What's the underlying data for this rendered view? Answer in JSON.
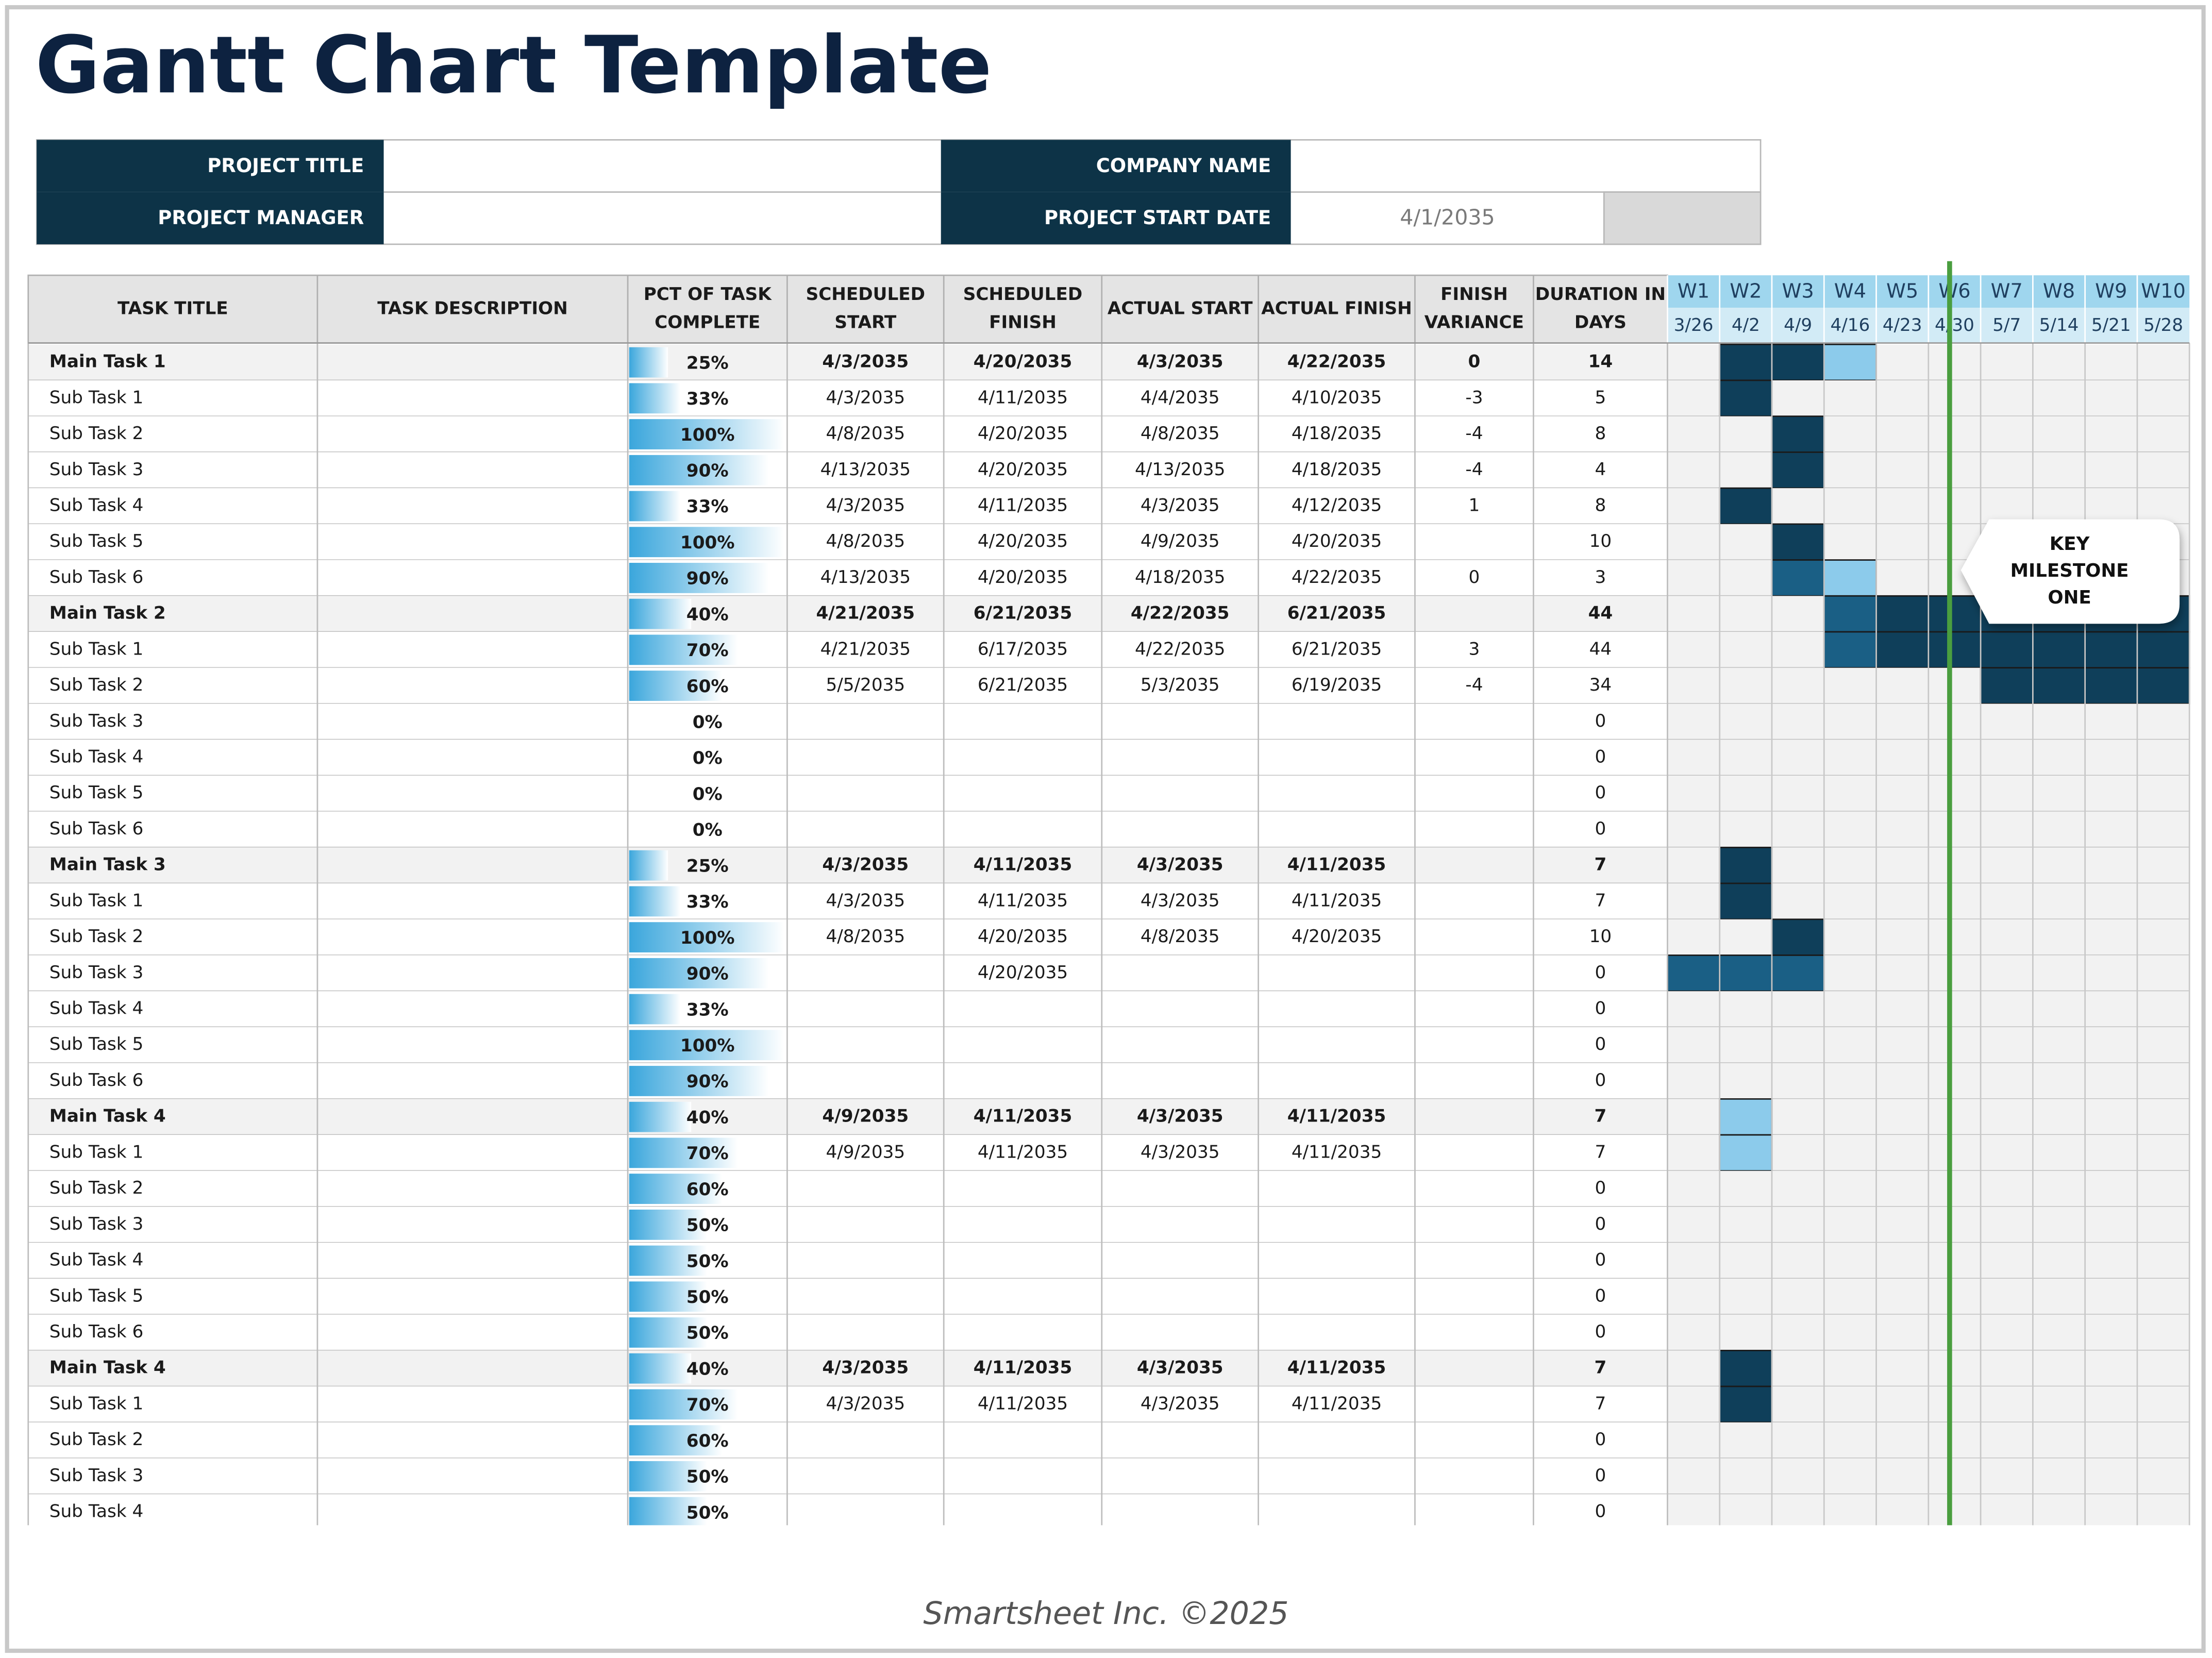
{
  "header": {
    "title": "Gantt Chart Template"
  },
  "project": {
    "labels": [
      "PROJECT TITLE",
      "COMPANY NAME",
      "PROJECT MANAGER",
      "PROJECT START DATE"
    ],
    "start_date": "4/1/2035"
  },
  "table": {
    "columns": [
      [
        "TASK TITLE"
      ],
      [
        "TASK DESCRIPTION"
      ],
      [
        "PCT OF TASK",
        "COMPLETE"
      ],
      [
        "SCHEDULED",
        "START"
      ],
      [
        "SCHEDULED",
        "FINISH"
      ],
      [
        "ACTUAL START"
      ],
      [
        "ACTUAL FINISH"
      ],
      [
        "FINISH",
        "VARIANCE"
      ],
      [
        "DURATION IN",
        "DAYS"
      ]
    ],
    "bar_color": "#3aa6dc",
    "weeks": [
      "W1",
      "W2",
      "W3",
      "W4",
      "W5",
      "W6",
      "W7",
      "W8",
      "W9",
      "W10"
    ],
    "week_dates": [
      "3/26",
      "4/2",
      "4/9",
      "4/16",
      "4/23",
      "4/30",
      "5/7",
      "5/14",
      "5/21",
      "5/28"
    ],
    "rows": [
      {
        "title": "Main Task 1",
        "main": true,
        "pct": 25,
        "pct_label": "25%",
        "sched_start": "4/3/2035",
        "sched_finish": "4/20/2035",
        "act_start": "4/3/2035",
        "act_finish": "4/22/2035",
        "variance": 0,
        "duration": 14,
        "gantt": [
          null,
          "#0f3f5a",
          "#0f3f5a",
          "#8ccbeb",
          null,
          null,
          null,
          null,
          null,
          null
        ]
      },
      {
        "title": "Sub Task 1",
        "pct": 33,
        "pct_label": "33%",
        "sched_start": "4/3/2035",
        "sched_finish": "4/11/2035",
        "act_start": "4/4/2035",
        "act_finish": "4/10/2035",
        "variance": -3,
        "duration": 5,
        "gantt": [
          null,
          "#0f3f5a",
          null,
          null,
          null,
          null,
          null,
          null,
          null,
          null
        ]
      },
      {
        "title": "Sub Task 2",
        "pct": 100,
        "pct_label": "100%",
        "sched_start": "4/8/2035",
        "sched_finish": "4/20/2035",
        "act_start": "4/8/2035",
        "act_finish": "4/18/2035",
        "variance": -4,
        "duration": 8,
        "gantt": [
          null,
          null,
          "#0f3f5a",
          null,
          null,
          null,
          null,
          null,
          null,
          null
        ]
      },
      {
        "title": "Sub Task 3",
        "pct": 90,
        "pct_label": "90%",
        "sched_start": "4/13/2035",
        "sched_finish": "4/20/2035",
        "act_start": "4/13/2035",
        "act_finish": "4/18/2035",
        "variance": -4,
        "duration": 4,
        "gantt": [
          null,
          null,
          "#0f3f5a",
          null,
          null,
          null,
          null,
          null,
          null,
          null
        ]
      },
      {
        "title": "Sub Task 4",
        "pct": 33,
        "pct_label": "33%",
        "sched_start": "4/3/2035",
        "sched_finish": "4/11/2035",
        "act_start": "4/3/2035",
        "act_finish": "4/12/2035",
        "variance": 1,
        "duration": 8,
        "gantt": [
          null,
          "#0f3f5a",
          null,
          null,
          null,
          null,
          null,
          null,
          null,
          null
        ]
      },
      {
        "title": "Sub Task 5",
        "pct": 100,
        "pct_label": "100%",
        "sched_start": "4/8/2035",
        "sched_finish": "4/20/2035",
        "act_start": "4/9/2035",
        "act_finish": "4/20/2035",
        "duration": 10,
        "gantt": [
          null,
          null,
          "#0f3f5a",
          null,
          null,
          null,
          null,
          null,
          null,
          null
        ]
      },
      {
        "title": "Sub Task 6",
        "pct": 90,
        "pct_label": "90%",
        "sched_start": "4/13/2035",
        "sched_finish": "4/20/2035",
        "act_start": "4/18/2035",
        "act_finish": "4/22/2035",
        "variance": 0,
        "duration": 3,
        "gantt": [
          null,
          null,
          "#1a5f85",
          "#8ccbeb",
          null,
          null,
          null,
          null,
          null,
          null
        ]
      },
      {
        "title": "Main Task 2",
        "main": true,
        "pct": 40,
        "pct_label": "40%",
        "sched_start": "4/21/2035",
        "sched_finish": "6/21/2035",
        "act_start": "4/22/2035",
        "act_finish": "6/21/2035",
        "duration": 44,
        "gantt": [
          null,
          null,
          null,
          "#1a5f85",
          "#0f3f5a",
          "#0f3f5a",
          "#0f3f5a",
          "#0f3f5a",
          "#0f3f5a",
          "#0f3f5a"
        ]
      },
      {
        "title": "Sub Task 1",
        "pct": 70,
        "pct_label": "70%",
        "sched_start": "4/21/2035",
        "sched_finish": "6/17/2035",
        "act_start": "4/22/2035",
        "act_finish": "6/21/2035",
        "variance": 3,
        "duration": 44,
        "gantt": [
          null,
          null,
          null,
          "#1a5f85",
          "#0f3f5a",
          "#0f3f5a",
          "#0f3f5a",
          "#0f3f5a",
          "#0f3f5a",
          "#0f3f5a"
        ]
      },
      {
        "title": "Sub Task 2",
        "pct": 60,
        "pct_label": "60%",
        "sched_start": "5/5/2035",
        "sched_finish": "6/21/2035",
        "act_start": "5/3/2035",
        "act_finish": "6/19/2035",
        "variance": -4,
        "duration": 34,
        "gantt": [
          null,
          null,
          null,
          null,
          null,
          null,
          "#0f3f5a",
          "#0f3f5a",
          "#0f3f5a",
          "#0f3f5a"
        ]
      },
      {
        "title": "Sub Task 3",
        "pct": 0,
        "pct_label": "0%",
        "duration": 0
      },
      {
        "title": "Sub Task 4",
        "pct": 0,
        "pct_label": "0%",
        "duration": 0
      },
      {
        "title": "Sub Task 5",
        "pct": 0,
        "pct_label": "0%",
        "duration": 0
      },
      {
        "title": "Sub Task 6",
        "pct": 0,
        "pct_label": "0%",
        "duration": 0
      },
      {
        "title": "Main Task 3",
        "main": true,
        "pct": 25,
        "pct_label": "25%",
        "sched_start": "4/3/2035",
        "sched_finish": "4/11/2035",
        "act_start": "4/3/2035",
        "act_finish": "4/11/2035",
        "duration": 7,
        "gantt": [
          null,
          "#0f3f5a",
          null,
          null,
          null,
          null,
          null,
          null,
          null,
          null
        ]
      },
      {
        "title": "Sub Task 1",
        "pct": 33,
        "pct_label": "33%",
        "sched_start": "4/3/2035",
        "sched_finish": "4/11/2035",
        "act_start": "4/3/2035",
        "act_finish": "4/11/2035",
        "duration": 7,
        "gantt": [
          null,
          "#0f3f5a",
          null,
          null,
          null,
          null,
          null,
          null,
          null,
          null
        ]
      },
      {
        "title": "Sub Task 2",
        "pct": 100,
        "pct_label": "100%",
        "sched_start": "4/8/2035",
        "sched_finish": "4/20/2035",
        "act_start": "4/8/2035",
        "act_finish": "4/20/2035",
        "duration": 10,
        "gantt": [
          null,
          null,
          "#0f3f5a",
          null,
          null,
          null,
          null,
          null,
          null,
          null
        ]
      },
      {
        "title": "Sub Task 3",
        "pct": 90,
        "pct_label": "90%",
        "sched_finish": "4/20/2035",
        "duration": 0,
        "gantt": [
          "#1a5f85",
          "#1a5f85",
          "#1a5f85",
          null,
          null,
          null,
          null,
          null,
          null,
          null
        ]
      },
      {
        "title": "Sub Task 4",
        "pct": 33,
        "pct_label": "33%",
        "duration": 0
      },
      {
        "title": "Sub Task 5",
        "pct": 100,
        "pct_label": "100%",
        "duration": 0
      },
      {
        "title": "Sub Task 6",
        "pct": 90,
        "pct_label": "90%",
        "duration": 0
      },
      {
        "title": "Main Task 4",
        "main": true,
        "pct": 40,
        "pct_label": "40%",
        "sched_start": "4/9/2035",
        "sched_finish": "4/11/2035",
        "act_start": "4/3/2035",
        "act_finish": "4/11/2035",
        "duration": 7,
        "gantt": [
          null,
          "#8ccbeb",
          null,
          null,
          null,
          null,
          null,
          null,
          null,
          null
        ]
      },
      {
        "title": "Sub Task 1",
        "pct": 70,
        "pct_label": "70%",
        "sched_start": "4/9/2035",
        "sched_finish": "4/11/2035",
        "act_start": "4/3/2035",
        "act_finish": "4/11/2035",
        "duration": 7,
        "gantt": [
          null,
          "#8ccbeb",
          null,
          null,
          null,
          null,
          null,
          null,
          null,
          null
        ]
      },
      {
        "title": "Sub Task 2",
        "pct": 60,
        "pct_label": "60%",
        "duration": 0
      },
      {
        "title": "Sub Task 3",
        "pct": 50,
        "pct_label": "50%",
        "duration": 0
      },
      {
        "title": "Sub Task 4",
        "pct": 50,
        "pct_label": "50%",
        "duration": 0
      },
      {
        "title": "Sub Task 5",
        "pct": 50,
        "pct_label": "50%",
        "duration": 0
      },
      {
        "title": "Sub Task 6",
        "pct": 50,
        "pct_label": "50%",
        "duration": 0
      },
      {
        "title": "Main Task 4",
        "main": true,
        "pct": 40,
        "pct_label": "40%",
        "sched_start": "4/3/2035",
        "sched_finish": "4/11/2035",
        "act_start": "4/3/2035",
        "act_finish": "4/11/2035",
        "duration": 7,
        "gantt": [
          null,
          "#0f3f5a",
          null,
          null,
          null,
          null,
          null,
          null,
          null,
          null
        ]
      },
      {
        "title": "Sub Task 1",
        "pct": 70,
        "pct_label": "70%",
        "sched_start": "4/3/2035",
        "sched_finish": "4/11/2035",
        "act_start": "4/3/2035",
        "act_finish": "4/11/2035",
        "duration": 7,
        "gantt": [
          null,
          "#0f3f5a",
          null,
          null,
          null,
          null,
          null,
          null,
          null,
          null
        ]
      },
      {
        "title": "Sub Task 2",
        "pct": 60,
        "pct_label": "60%",
        "duration": 0
      },
      {
        "title": "Sub Task 3",
        "pct": 50,
        "pct_label": "50%",
        "duration": 0
      },
      {
        "title": "Sub Task 4",
        "pct": 50,
        "pct_label": "50%",
        "duration": 0
      }
    ]
  },
  "milestone": {
    "lines": [
      "KEY",
      "MILESTONE",
      "ONE"
    ]
  },
  "footer": "Smartsheet Inc. ©2025"
}
